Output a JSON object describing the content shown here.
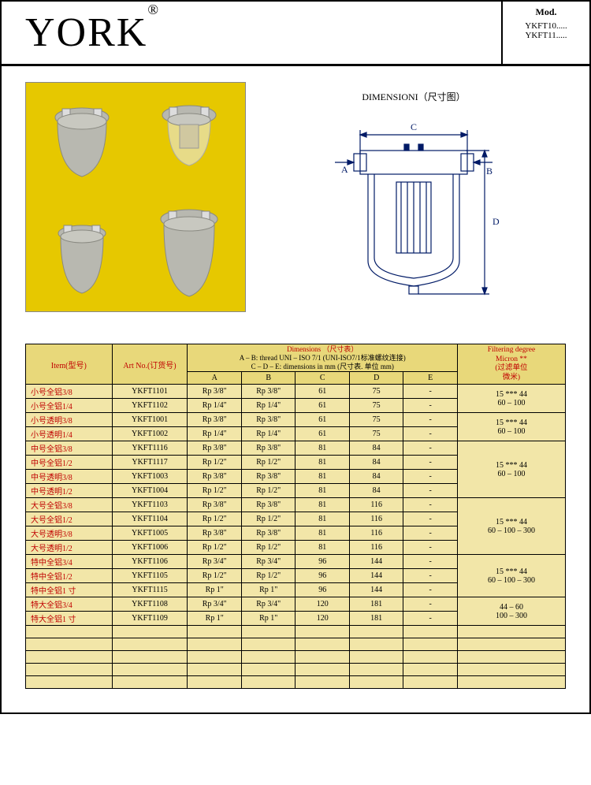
{
  "header": {
    "brand": "YORK",
    "reg": "®",
    "mod_title": "Mod.",
    "mod_lines": [
      "YKFT10.....",
      "YKFT11....."
    ]
  },
  "diagram": {
    "title": "DIMENSIONI（尺寸图）",
    "label_a": "A",
    "label_b": "B",
    "label_c": "C",
    "label_d": "D",
    "stroke": "#001a66",
    "stroke_width": 1.2
  },
  "photos": {
    "bg": "#e6c800",
    "filter_body": "#b8b8b0",
    "filter_shadow": "#8a8a82"
  },
  "table": {
    "headers": {
      "item": "Item(型号)",
      "art": "Art No.(订货号)",
      "dim_title": "Dimensions    （尺寸表）",
      "dim_note1": "A – B: thread UNI – ISO 7/1   (UNI-ISO7/1标准螺纹连接)",
      "dim_note2": "C – D – E: dimensions in mm    (尺寸表. 单位 mm)",
      "A": "A",
      "B": "B",
      "C": "C",
      "D": "D",
      "E": "E",
      "filter_l1": "Filtering degree",
      "filter_l2": "Micron **",
      "filter_l3": "(过滤单位",
      "filter_l4": "微米)"
    },
    "rows": [
      {
        "item": "小号全铝3/8",
        "art": "YKFT1101",
        "a": "Rp 3/8\"",
        "b": "Rp 3/8\"",
        "c": "61",
        "d": "75",
        "e": "-"
      },
      {
        "item": "小号全铝1/4",
        "art": "YKFT1102",
        "a": "Rp 1/4\"",
        "b": "Rp 1/4\"",
        "c": "61",
        "d": "75",
        "e": "-"
      },
      {
        "item": "小号透明3/8",
        "art": "YKFT1001",
        "a": "Rp 3/8\"",
        "b": "Rp 3/8\"",
        "c": "61",
        "d": "75",
        "e": "-"
      },
      {
        "item": "小号透明1/4",
        "art": "YKFT1002",
        "a": "Rp 1/4\"",
        "b": "Rp 1/4\"",
        "c": "61",
        "d": "75",
        "e": "-"
      },
      {
        "item": "中号全铝3/8",
        "art": "YKFT1116",
        "a": "Rp 3/8\"",
        "b": "Rp 3/8\"",
        "c": "81",
        "d": "84",
        "e": "-"
      },
      {
        "item": "中号全铝1/2",
        "art": "YKFT1117",
        "a": "Rp 1/2\"",
        "b": "Rp 1/2\"",
        "c": "81",
        "d": "84",
        "e": "-"
      },
      {
        "item": "中号透明3/8",
        "art": "YKFT1003",
        "a": "Rp 3/8\"",
        "b": "Rp 3/8\"",
        "c": "81",
        "d": "84",
        "e": "-"
      },
      {
        "item": "中号透明1/2",
        "art": "YKFT1004",
        "a": "Rp 1/2\"",
        "b": "Rp 1/2\"",
        "c": "81",
        "d": "84",
        "e": "-"
      },
      {
        "item": "大号全铝3/8",
        "art": "YKFT1103",
        "a": "Rp 3/8\"",
        "b": "Rp 3/8\"",
        "c": "81",
        "d": "116",
        "e": "-"
      },
      {
        "item": "大号全铝1/2",
        "art": "YKFT1104",
        "a": "Rp 1/2\"",
        "b": "Rp 1/2\"",
        "c": "81",
        "d": "116",
        "e": "-"
      },
      {
        "item": "大号透明3/8",
        "art": "YKFT1005",
        "a": "Rp 3/8\"",
        "b": "Rp 3/8\"",
        "c": "81",
        "d": "116",
        "e": "-"
      },
      {
        "item": "大号透明1/2",
        "art": "YKFT1006",
        "a": "Rp 1/2\"",
        "b": "Rp 1/2\"",
        "c": "81",
        "d": "116",
        "e": "-"
      },
      {
        "item": "特中全铝3/4",
        "art": "YKFT1106",
        "a": "Rp 3/4\"",
        "b": "Rp 3/4\"",
        "c": "96",
        "d": "144",
        "e": "-"
      },
      {
        "item": "特中全铝1/2",
        "art": "YKFT1105",
        "a": "Rp 1/2\"",
        "b": "Rp 1/2\"",
        "c": "96",
        "d": "144",
        "e": "-"
      },
      {
        "item": "特中全铝1 寸",
        "art": "YKFT1115",
        "a": "Rp 1\"",
        "b": "Rp 1\"",
        "c": "96",
        "d": "144",
        "e": "-"
      },
      {
        "item": "特大全铝3/4",
        "art": "YKFT1108",
        "a": "Rp 3/4\"",
        "b": "Rp 3/4\"",
        "c": "120",
        "d": "181",
        "e": "-"
      },
      {
        "item": "特大全铝1 寸",
        "art": "YKFT1109",
        "a": "Rp 1\"",
        "b": "Rp 1\"",
        "c": "120",
        "d": "181",
        "e": "-"
      }
    ],
    "filter_groups": [
      {
        "span": 2,
        "l1": "15 *** 44",
        "l2": "60 – 100"
      },
      {
        "span": 2,
        "l1": "15 *** 44",
        "l2": "60 – 100"
      },
      {
        "span": 4,
        "l1": "15 *** 44",
        "l2": "60 – 100"
      },
      {
        "span": 4,
        "l1": "15 *** 44",
        "l2": "60 – 100 – 300"
      },
      {
        "span": 3,
        "l1": "15 *** 44",
        "l2": "60 – 100 – 300"
      },
      {
        "span": 2,
        "l1": "44 – 60",
        "l2": "100 – 300"
      }
    ],
    "blank_rows": 5,
    "cell_bg": "#f2e6a8",
    "header_bg": "#e8d87a",
    "red": "#c00000"
  }
}
